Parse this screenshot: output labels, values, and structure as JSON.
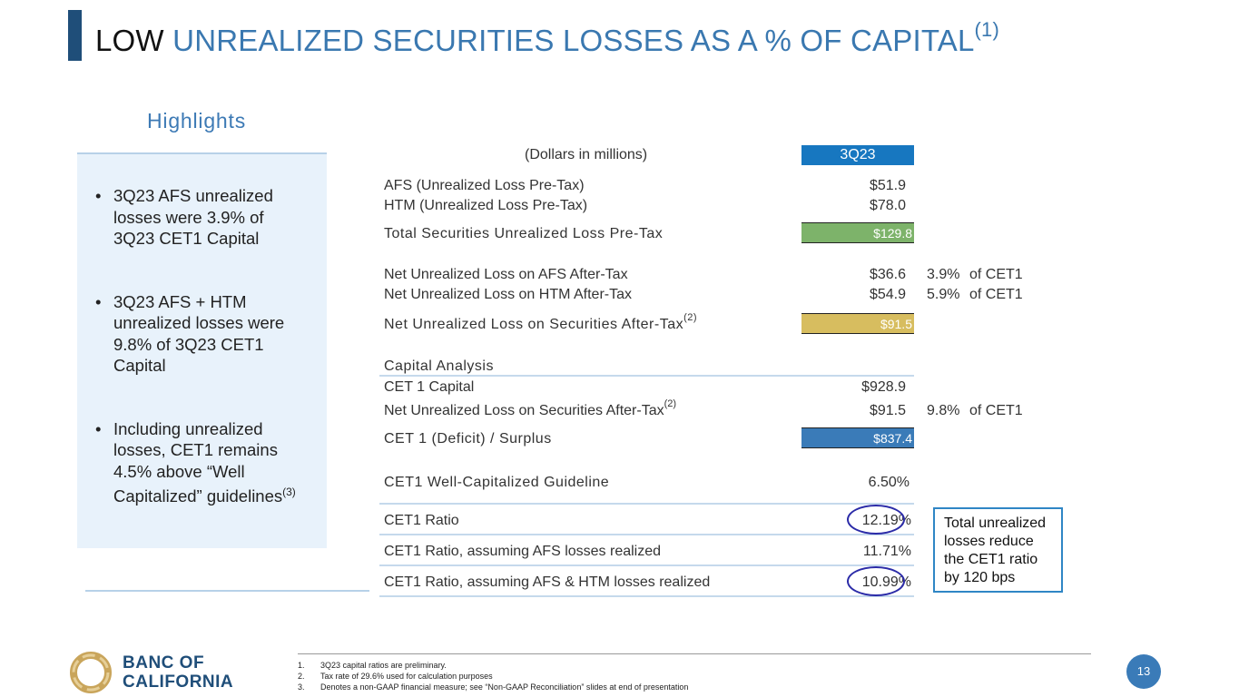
{
  "title": {
    "lead": "LOW",
    "rest": "UNREALIZED SECURITIES LOSSES AS A % OF CAPITAL",
    "sup": "(1)"
  },
  "highlights": {
    "heading": "Highlights",
    "bullets": [
      "3Q23 AFS unrealized losses were 3.9% of 3Q23 CET1 Capital",
      "3Q23 AFS + HTM unrealized losses were 9.8% of 3Q23 CET1 Capital",
      "Including unrealized losses, CET1 remains 4.5% above “Well Capitalized” guidelines"
    ],
    "bullet3_sup": "(3)"
  },
  "table": {
    "unit_header": "(Dollars in millions)",
    "period": "3Q23",
    "afs_label": "AFS (Unrealized Loss Pre-Tax)",
    "afs_value": "$51.9",
    "htm_label": "HTM (Unrealized Loss Pre-Tax)",
    "htm_value": "$78.0",
    "total_label": "Total Securities Unrealized Loss Pre-Tax",
    "total_value": "$129.8",
    "net_afs_label": "Net Unrealized Loss on AFS After-Tax",
    "net_afs_value": "$36.6",
    "net_afs_pct": "3.9%",
    "net_afs_of": "of CET1",
    "net_htm_label": "Net Unrealized Loss on HTM After-Tax",
    "net_htm_value": "$54.9",
    "net_htm_pct": "5.9%",
    "net_htm_of": "of CET1",
    "net_sec_label": "Net Unrealized Loss on Securities After-Tax",
    "net_sec_sup": "(2)",
    "net_sec_value": "$91.5",
    "capital_heading": "Capital Analysis",
    "cet1_cap_label": "CET 1 Capital",
    "cet1_cap_value": "$928.9",
    "net_sec2_label": "Net Unrealized Loss on Securities After-Tax",
    "net_sec2_sup": "(2)",
    "net_sec2_value": "$91.5",
    "net_sec2_pct": "9.8%",
    "net_sec2_of": "of CET1",
    "surplus_label": "CET 1 (Deficit) / Surplus",
    "surplus_value": "$837.4",
    "guideline_label": "CET1 Well-Capitalized Guideline",
    "guideline_value": "6.50%",
    "ratio_label": "CET1 Ratio",
    "ratio_value": "12.19%",
    "ratio_afs_label": "CET1 Ratio, assuming AFS losses realized",
    "ratio_afs_value": "11.71%",
    "ratio_all_label": "CET1 Ratio, assuming AFS & HTM losses realized",
    "ratio_all_value": "10.99%"
  },
  "callout": "Total unrealized losses reduce the CET1 ratio by 120 bps",
  "footnotes": [
    {
      "n": "1.",
      "text": "3Q23 capital ratios are preliminary."
    },
    {
      "n": "2.",
      "text": "Tax rate of 29.6% used for calculation purposes"
    },
    {
      "n": "3.",
      "text": "Denotes a non-GAAP financial measure; see “Non-GAAP Reconciliation” slides at end of presentation"
    }
  ],
  "logo": {
    "line1": "BANC OF",
    "line2": "CALIFORNIA"
  },
  "page_number": "13",
  "colors": {
    "title_blue": "#3a78b0",
    "header_blue": "#1777c0",
    "green": "#7db36a",
    "gold": "#d7bd5f",
    "navy": "#1f4e79"
  }
}
